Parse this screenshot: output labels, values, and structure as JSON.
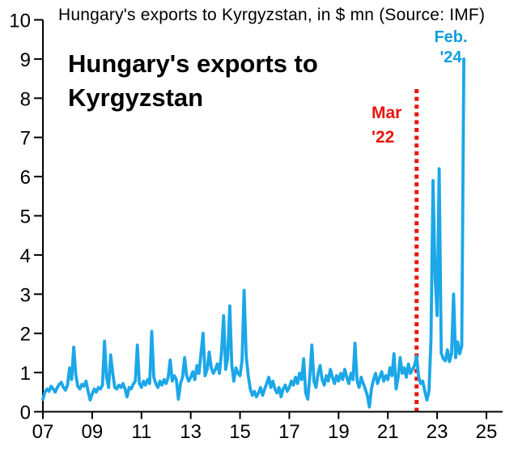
{
  "page": {
    "background": "#ffffff"
  },
  "chart_data": {
    "type": "line",
    "title": "Hungary's exports to Kyrgyzstan, in $ mn (Source: IMF)",
    "inner_title": "Hungary's exports to Kyrgyzstan",
    "unit": "$ mn",
    "source": "IMF",
    "frequency": "monthly",
    "x_start_year": 2007,
    "x_tick_labels": [
      "07",
      "09",
      "11",
      "13",
      "15",
      "17",
      "19",
      "21",
      "23",
      "25"
    ],
    "y_ticks": [
      0,
      1,
      2,
      3,
      4,
      5,
      6,
      7,
      8,
      9,
      10
    ],
    "ylim": [
      0,
      10
    ],
    "grid": false,
    "legend": "none",
    "line_color": "#1ba7e8",
    "axis_color": "#000000",
    "event_line": {
      "label_lines": [
        "Mar",
        "'22"
      ],
      "color": "#e8150c",
      "month_index": 182,
      "date": "2022-03",
      "style": "dotted"
    },
    "end_label": {
      "label_lines": [
        "Feb.",
        "'24"
      ],
      "color": "#0f9ddd",
      "month_index": 205,
      "date": "2024-02",
      "value": 9.0
    },
    "series": [
      {
        "name": "Hungary's exports to Kyrgyzstan, $ mn",
        "start": "2007-01",
        "end": "2024-02",
        "values": [
          0.32,
          0.5,
          0.58,
          0.52,
          0.65,
          0.58,
          0.5,
          0.62,
          0.7,
          0.75,
          0.62,
          0.55,
          0.68,
          1.12,
          0.82,
          1.65,
          0.95,
          0.65,
          0.58,
          0.7,
          0.65,
          0.78,
          0.52,
          0.3,
          0.45,
          0.58,
          0.5,
          0.62,
          0.58,
          0.68,
          1.8,
          0.88,
          0.62,
          1.45,
          0.98,
          0.62,
          0.58,
          0.68,
          0.62,
          0.72,
          0.58,
          0.38,
          0.62,
          0.58,
          0.7,
          0.78,
          1.7,
          0.72,
          0.62,
          0.78,
          0.68,
          0.82,
          0.72,
          2.05,
          0.88,
          0.72,
          0.62,
          0.78,
          0.68,
          0.82,
          0.72,
          0.88,
          1.32,
          0.78,
          0.92,
          0.82,
          0.32,
          0.72,
          0.88,
          1.38,
          0.92,
          0.78,
          0.88,
          1.02,
          0.82,
          1.18,
          0.98,
          1.48,
          2.0,
          0.92,
          1.08,
          1.52,
          1.12,
          0.98,
          1.08,
          1.22,
          0.98,
          1.52,
          2.45,
          1.08,
          1.38,
          2.7,
          1.18,
          0.78,
          1.12,
          0.98,
          0.92,
          1.32,
          3.1,
          1.42,
          0.92,
          0.58,
          0.42,
          0.52,
          0.38,
          0.48,
          0.62,
          0.42,
          0.58,
          0.72,
          0.88,
          0.62,
          0.78,
          0.58,
          0.48,
          0.62,
          0.38,
          0.58,
          0.68,
          0.52,
          0.62,
          0.78,
          0.68,
          0.88,
          0.72,
          0.98,
          0.82,
          1.35,
          0.48,
          0.32,
          0.92,
          1.7,
          0.78,
          0.62,
          0.98,
          1.18,
          0.82,
          0.68,
          0.92,
          0.78,
          1.08,
          0.88,
          0.72,
          0.92,
          0.78,
          0.98,
          0.82,
          1.08,
          0.88,
          0.72,
          0.98,
          0.82,
          1.75,
          0.78,
          0.62,
          0.88,
          0.72,
          0.58,
          0.42,
          0.12,
          0.58,
          0.82,
          0.98,
          0.72,
          0.88,
          1.02,
          0.78,
          0.92,
          0.82,
          1.12,
          0.92,
          1.48,
          0.58,
          0.88,
          1.38,
          0.98,
          1.12,
          0.88,
          1.22,
          0.98,
          1.08,
          1.18,
          1.42,
          0.88,
          0.72,
          0.78,
          0.52,
          0.3,
          0.52,
          1.85,
          5.9,
          3.45,
          2.45,
          6.2,
          1.5,
          1.35,
          1.3,
          1.58,
          1.28,
          1.48,
          3.0,
          1.38,
          1.78,
          1.48,
          1.68,
          9.0
        ]
      }
    ]
  }
}
